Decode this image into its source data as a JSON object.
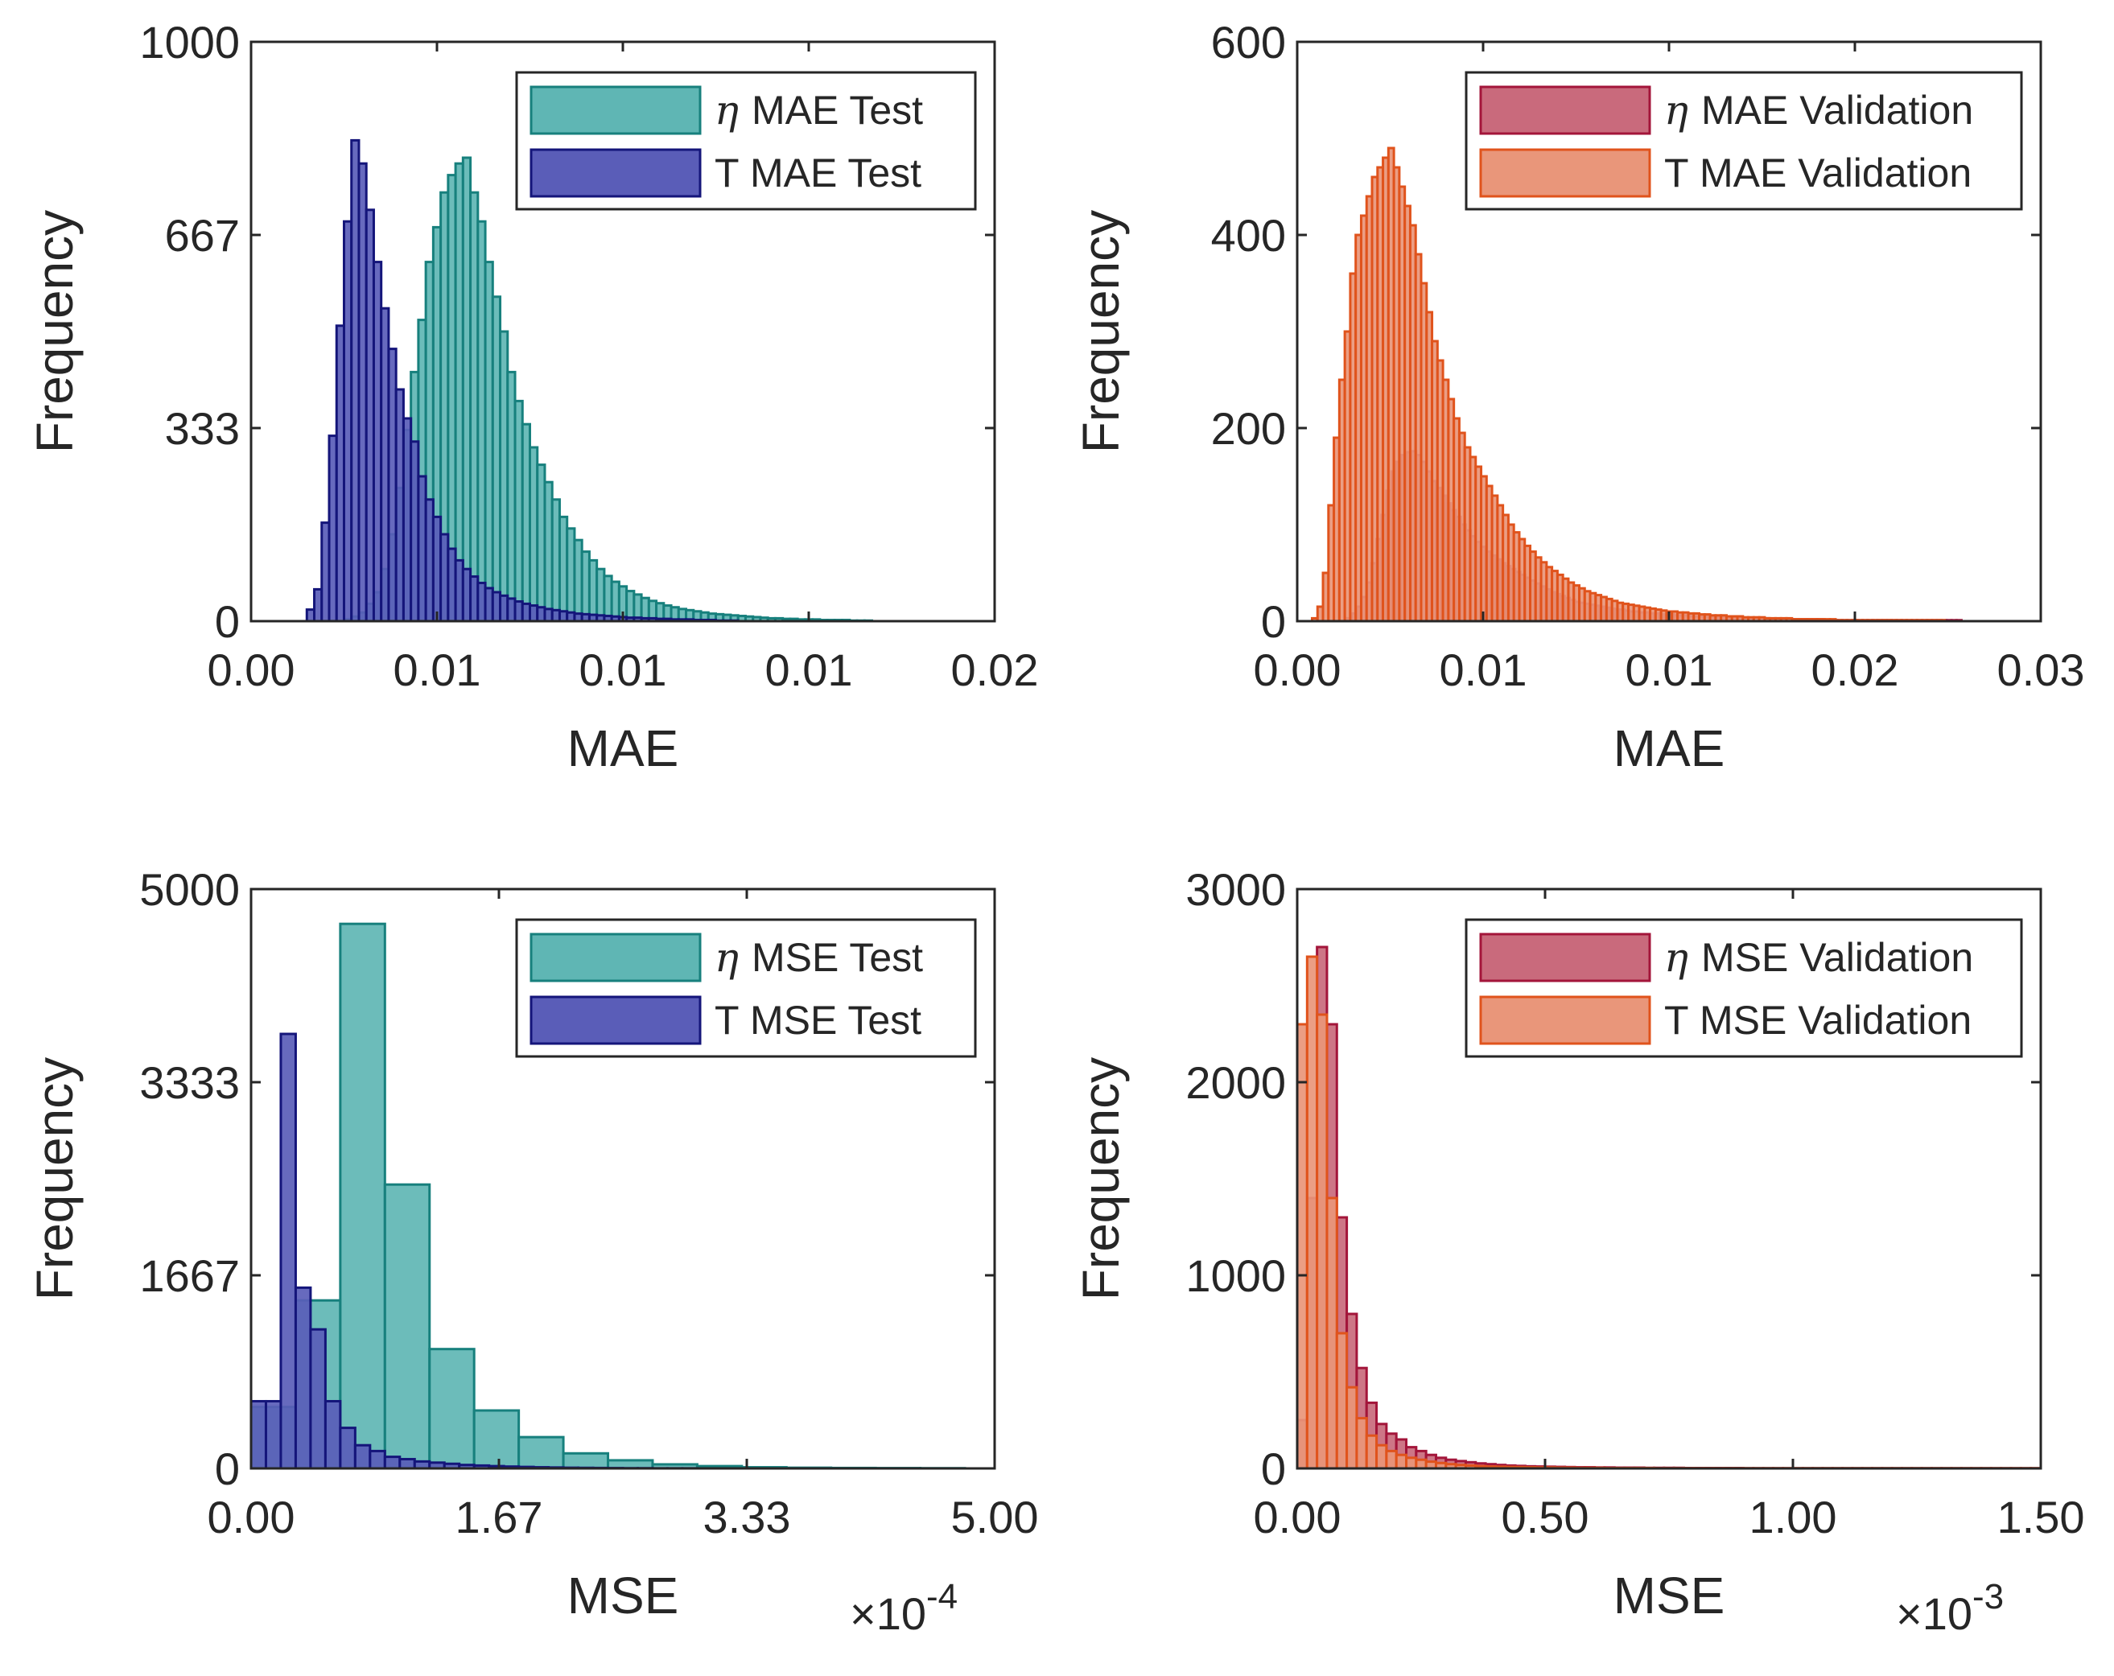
{
  "chart_data": [
    {
      "type": "bar",
      "title": "",
      "xlabel": "MAE",
      "ylabel": "Frequency",
      "xlim": [
        0,
        0.02
      ],
      "ylim": [
        0,
        1000
      ],
      "xtick_values": [
        0,
        0.005,
        0.01,
        0.015,
        0.02
      ],
      "xtick_labels": [
        "0.00",
        "0.01",
        "0.01",
        "0.01",
        "0.02"
      ],
      "ytick_values": [
        0,
        333.33,
        666.67,
        1000
      ],
      "ytick_labels": [
        "0",
        "333",
        "667",
        "1000"
      ],
      "exponent_label": "",
      "legend_position": "top-right",
      "series": [
        {
          "name": "MAE Test",
          "symbol": "η",
          "fill": "#5fb6b4",
          "edge": "#17807d",
          "bin_start": 0.0025,
          "bin_width": 0.0002,
          "values": [
            3,
            8,
            15,
            30,
            50,
            90,
            150,
            230,
            330,
            430,
            520,
            620,
            680,
            740,
            770,
            790,
            800,
            740,
            690,
            620,
            560,
            500,
            430,
            380,
            340,
            300,
            270,
            240,
            210,
            180,
            160,
            140,
            120,
            105,
            90,
            78,
            68,
            60,
            52,
            46,
            40,
            35,
            31,
            27,
            24,
            21,
            19,
            17,
            15,
            13,
            12,
            11,
            10,
            9,
            8,
            7,
            6,
            5,
            5,
            4,
            4,
            3,
            3,
            3,
            2,
            2,
            2,
            2,
            1,
            1,
            1
          ]
        },
        {
          "name": "MAE Test",
          "symbol": "T",
          "fill": "#5a5db8",
          "edge": "#14157a",
          "bin_start": 0.0015,
          "bin_width": 0.0002,
          "values": [
            20,
            55,
            170,
            320,
            510,
            690,
            830,
            790,
            710,
            620,
            540,
            470,
            400,
            350,
            310,
            250,
            210,
            180,
            150,
            125,
            105,
            90,
            77,
            66,
            57,
            50,
            44,
            39,
            34,
            30,
            27,
            24,
            21,
            19,
            17,
            15,
            13,
            12,
            11,
            10,
            9,
            8,
            7,
            6,
            6,
            5,
            5,
            4,
            4,
            3,
            3,
            3,
            2,
            2,
            2,
            1,
            1,
            1
          ]
        }
      ]
    },
    {
      "type": "bar",
      "title": "",
      "xlabel": "MAE",
      "ylabel": "Frequency",
      "xlim": [
        0,
        0.03
      ],
      "ylim": [
        0,
        600
      ],
      "xtick_values": [
        0,
        0.0075,
        0.015,
        0.0225,
        0.03
      ],
      "xtick_labels": [
        "0.00",
        "0.01",
        "0.01",
        "0.02",
        "0.03"
      ],
      "ytick_values": [
        0,
        200,
        400,
        600
      ],
      "ytick_labels": [
        "0",
        "200",
        "400",
        "600"
      ],
      "exponent_label": "",
      "legend_position": "top-right",
      "series": [
        {
          "name": "MAE Validation",
          "symbol": "η",
          "fill": "#c96a7c",
          "edge": "#a3153a",
          "bin_start": 0.002,
          "bin_width": 0.0002,
          "values": [
            3,
            8,
            15,
            25,
            40,
            60,
            85,
            110,
            135,
            155,
            165,
            172,
            175,
            176,
            172,
            165,
            155,
            145,
            138,
            130,
            122,
            115,
            108,
            100,
            94,
            88,
            82,
            77,
            72,
            68,
            64,
            60,
            57,
            54,
            51,
            48,
            45,
            42,
            39,
            36,
            33,
            30,
            28,
            26,
            24,
            22,
            20,
            19,
            18,
            17,
            16,
            15,
            14,
            13,
            12,
            12,
            11,
            10,
            10,
            9,
            9,
            8,
            8,
            7,
            7,
            7,
            6,
            6,
            6,
            5,
            5,
            5,
            5,
            4,
            4,
            4,
            4,
            4,
            3,
            3,
            3,
            3,
            3,
            3,
            3,
            2,
            2,
            2,
            2,
            2,
            2,
            2,
            2,
            2,
            2,
            2,
            1,
            1,
            1,
            1,
            1,
            1,
            1,
            1,
            1,
            1,
            1,
            1,
            1,
            1,
            1,
            1,
            1,
            1,
            1,
            1,
            1,
            1,
            1,
            1,
            1,
            1,
            1,
            1
          ]
        },
        {
          "name": "MAE Validation",
          "symbol": "T",
          "fill": "#e9967a",
          "edge": "#e0531c",
          "bin_start": 0.0006,
          "bin_width": 0.00022,
          "values": [
            3,
            15,
            50,
            120,
            190,
            250,
            300,
            360,
            400,
            420,
            440,
            460,
            470,
            480,
            490,
            470,
            450,
            430,
            410,
            380,
            350,
            320,
            290,
            270,
            250,
            230,
            210,
            195,
            180,
            170,
            160,
            150,
            140,
            130,
            120,
            110,
            100,
            92,
            85,
            78,
            72,
            66,
            61,
            56,
            52,
            48,
            44,
            40,
            37,
            34,
            31,
            29,
            27,
            25,
            23,
            21,
            19,
            18,
            17,
            16,
            15,
            14,
            13,
            12,
            11,
            10,
            10,
            9,
            9,
            8,
            8,
            7,
            7,
            6,
            6,
            6,
            5,
            5,
            5,
            4,
            4,
            4,
            4,
            3,
            3,
            3,
            3,
            3,
            2,
            2,
            2,
            2,
            2,
            2,
            2,
            2,
            1,
            1,
            1,
            1,
            1,
            1,
            1,
            1,
            1,
            1,
            1,
            1,
            1,
            1,
            1,
            1,
            1,
            1,
            1,
            1
          ]
        }
      ]
    },
    {
      "type": "bar",
      "title": "",
      "xlabel": "MSE",
      "ylabel": "Frequency",
      "xlim": [
        0,
        5.0
      ],
      "ylim": [
        0,
        5000
      ],
      "xtick_values": [
        0,
        1.6667,
        3.3333,
        5.0
      ],
      "xtick_labels": [
        "0.00",
        "1.67",
        "3.33",
        "5.00"
      ],
      "ytick_values": [
        0,
        1666.67,
        3333.33,
        5000
      ],
      "ytick_labels": [
        "0",
        "1667",
        "3333",
        "5000"
      ],
      "exponent_label": "×10",
      "exponent_power": "-4",
      "legend_position": "top-right",
      "series": [
        {
          "name": "MSE Test",
          "symbol": "η",
          "fill": "#5fb6b4",
          "edge": "#17807d",
          "bin_start": 0.0,
          "bin_width": 0.3,
          "values": [
            530,
            1450,
            4700,
            2450,
            1030,
            500,
            270,
            130,
            70,
            35,
            20,
            10,
            6,
            4,
            3,
            2
          ]
        },
        {
          "name": "MSE Test",
          "symbol": "T",
          "fill": "#5a5db8",
          "edge": "#14157a",
          "bin_start": 0.0,
          "bin_width": 0.1,
          "values": [
            580,
            580,
            3750,
            1560,
            1200,
            580,
            350,
            200,
            150,
            100,
            80,
            60,
            50,
            40,
            30,
            25,
            20,
            16,
            13,
            10,
            8,
            6,
            5,
            4,
            3,
            2,
            2,
            1,
            1,
            1
          ]
        }
      ]
    },
    {
      "type": "bar",
      "title": "",
      "xlabel": "MSE",
      "ylabel": "Frequency",
      "xlim": [
        0,
        1.5
      ],
      "ylim": [
        0,
        3000
      ],
      "xtick_values": [
        0,
        0.5,
        1.0,
        1.5
      ],
      "xtick_labels": [
        "0.00",
        "0.50",
        "1.00",
        "1.50"
      ],
      "ytick_values": [
        0,
        1000,
        2000,
        3000
      ],
      "ytick_labels": [
        "0",
        "1000",
        "2000",
        "3000"
      ],
      "exponent_label": "×10",
      "exponent_power": "-3",
      "legend_position": "top-right",
      "series": [
        {
          "name": "MSE Validation",
          "symbol": "η",
          "fill": "#c96a7c",
          "edge": "#a3153a",
          "bin_start": 0.0,
          "bin_width": 0.02,
          "values": [
            250,
            1400,
            2700,
            2300,
            1300,
            800,
            520,
            340,
            230,
            180,
            150,
            110,
            90,
            70,
            55,
            45,
            38,
            32,
            26,
            22,
            18,
            15,
            13,
            11,
            10,
            9,
            8,
            7,
            6,
            6,
            5,
            5,
            4,
            4,
            4,
            3,
            3,
            3,
            3,
            2,
            2,
            2,
            2,
            2,
            2,
            1,
            1,
            1,
            1,
            1,
            1,
            1,
            1,
            1,
            1,
            1,
            1,
            1,
            1,
            1,
            1,
            1,
            1,
            1,
            1,
            1,
            1,
            1,
            1,
            1,
            1,
            1,
            1,
            1,
            1
          ]
        },
        {
          "name": "MSE Validation",
          "symbol": "T",
          "fill": "#e9967a",
          "edge": "#e0531c",
          "bin_start": 0.0,
          "bin_width": 0.02,
          "values": [
            2300,
            2650,
            2350,
            1400,
            700,
            420,
            260,
            170,
            120,
            90,
            70,
            55,
            45,
            35,
            28,
            22,
            18,
            15,
            12,
            10,
            9,
            8,
            7,
            6,
            5,
            5,
            4,
            4,
            3,
            3,
            3,
            2,
            2,
            2,
            2,
            2,
            1,
            1,
            1,
            1,
            1,
            1,
            1,
            1,
            1,
            1,
            1,
            1,
            1,
            1,
            1,
            1,
            1,
            1,
            1,
            1,
            1,
            1,
            1,
            1,
            1,
            1,
            1,
            1,
            1,
            1,
            1,
            1,
            1,
            1,
            1,
            1,
            1,
            1,
            1
          ]
        }
      ]
    }
  ]
}
